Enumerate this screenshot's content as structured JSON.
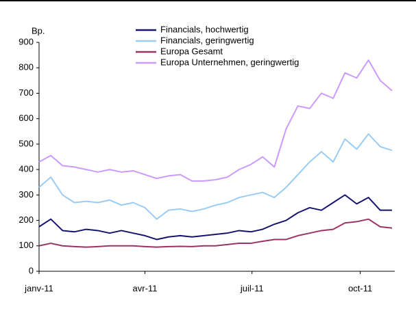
{
  "chart_data": {
    "type": "line",
    "y_label": "Bp.",
    "x": [
      0,
      10,
      20,
      30,
      40,
      50,
      60,
      70,
      80,
      90,
      100,
      110,
      120,
      130,
      140,
      150,
      160,
      170,
      180,
      190,
      200,
      210,
      220,
      230,
      240,
      250,
      260,
      270,
      280,
      290,
      300
    ],
    "xlim": [
      0,
      300
    ],
    "xticks": [
      {
        "value": 0,
        "label": "janv-11"
      },
      {
        "value": 90,
        "label": "avr-11"
      },
      {
        "value": 181,
        "label": "juil-11"
      },
      {
        "value": 273,
        "label": "oct-11"
      }
    ],
    "ylim": [
      0,
      900
    ],
    "yticks": [
      0,
      100,
      200,
      300,
      400,
      500,
      600,
      700,
      800,
      900
    ],
    "legend": "top",
    "series": [
      {
        "name": "Financials, hochwertig",
        "color": "#14146e",
        "values": [
          175,
          205,
          160,
          155,
          165,
          160,
          150,
          160,
          150,
          140,
          125,
          135,
          140,
          135,
          140,
          145,
          150,
          160,
          155,
          165,
          185,
          200,
          230,
          250,
          240,
          270,
          300,
          265,
          290,
          240,
          240
        ]
      },
      {
        "name": "Financials, geringwertig",
        "color": "#99ccf5",
        "values": [
          330,
          370,
          300,
          270,
          275,
          270,
          280,
          260,
          270,
          250,
          205,
          240,
          245,
          235,
          245,
          260,
          270,
          290,
          300,
          310,
          290,
          330,
          380,
          430,
          470,
          430,
          520,
          480,
          540,
          490,
          475
        ]
      },
      {
        "name": "Europa Gesamt",
        "color": "#993366",
        "values": [
          100,
          110,
          100,
          97,
          95,
          97,
          100,
          100,
          100,
          97,
          95,
          97,
          98,
          97,
          100,
          100,
          105,
          110,
          110,
          118,
          125,
          125,
          140,
          150,
          160,
          165,
          190,
          195,
          205,
          175,
          170
        ]
      },
      {
        "name": "Europa Unternehmen, geringwertig",
        "color": "#cc99ff",
        "values": [
          430,
          455,
          415,
          410,
          400,
          390,
          400,
          390,
          395,
          380,
          365,
          375,
          380,
          355,
          355,
          360,
          370,
          400,
          420,
          450,
          410,
          560,
          650,
          640,
          700,
          680,
          780,
          760,
          830,
          750,
          710
        ]
      }
    ]
  }
}
